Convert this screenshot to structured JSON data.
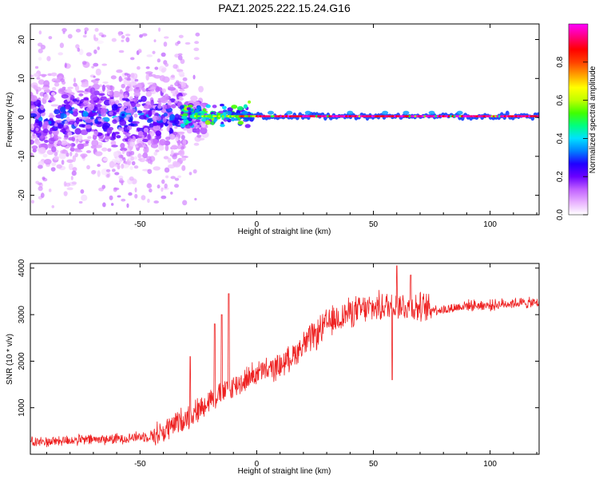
{
  "figure_title": "PAZ1.2025.222.15.24.G16",
  "chart_data": [
    {
      "type": "heatmap",
      "title": "PAZ1.2025.222.15.24.G16",
      "xlabel": "Height of straight line (km)",
      "ylabel": "Frequency (Hz)",
      "xlim": [
        -97,
        121
      ],
      "ylim": [
        -25,
        24
      ],
      "x_ticks": [
        -50,
        0,
        50,
        100
      ],
      "y_ticks": [
        -20,
        -10,
        0,
        10,
        20
      ],
      "grid": false,
      "colorbar": {
        "label": "Normalized spectral amplitude",
        "ticks": [
          0.0,
          0.2,
          0.4,
          0.6,
          0.8
        ],
        "range": [
          0,
          1
        ],
        "colors": [
          "#ffffff",
          "#e8b0ff",
          "#c060ff",
          "#6a00ff",
          "#2000ff",
          "#0080ff",
          "#00e0ff",
          "#00ff80",
          "#40ff00",
          "#c0ff00",
          "#ffff00",
          "#ffa000",
          "#ff4000",
          "#ff0000",
          "#ff0080",
          "#ff00ff"
        ]
      },
      "description_of_content": "Broadband noisy energy (-25 to 23 Hz) below about -25 km; a narrow high-amplitude line near 0 Hz (approx 0.3 Hz) from about -25 km to 121 km with amplitude rising to ~0.9-1.0 beyond 0 km."
    },
    {
      "type": "line",
      "xlabel": "Height of straight line (km)",
      "ylabel": "SNR (10 * v/v)",
      "xlim": [
        -97,
        121
      ],
      "ylim": [
        0,
        4100
      ],
      "x_ticks": [
        -50,
        0,
        50,
        100
      ],
      "y_ticks": [
        1000,
        2000,
        3000,
        4000
      ],
      "grid": false,
      "series": [
        {
          "color": "#ee2222",
          "trend": {
            "x": [
              -97,
              -80,
              -60,
              -45,
              -40,
              -35,
              -30,
              -25,
              -20,
              -15,
              -10,
              -5,
              0,
              5,
              10,
              15,
              20,
              25,
              30,
              40,
              50,
              60,
              70,
              80,
              90,
              100,
              110,
              121
            ],
            "y": [
              250,
              300,
              330,
              400,
              480,
              650,
              800,
              950,
              1200,
              1300,
              1450,
              1600,
              1750,
              1800,
              1900,
              2100,
              2350,
              2550,
              2800,
              3050,
              3150,
              3200,
              3150,
              3100,
              3200,
              3200,
              3250,
              3250
            ]
          },
          "spikes": [
            {
              "x": -28.5,
              "y": 2100
            },
            {
              "x": -18,
              "y": 2800
            },
            {
              "x": -15,
              "y": 3000
            },
            {
              "x": -12,
              "y": 3450
            },
            {
              "x": 58,
              "y": 1600
            },
            {
              "x": 60,
              "y": 4050
            },
            {
              "x": 66,
              "y": 3850
            }
          ]
        }
      ]
    }
  ]
}
